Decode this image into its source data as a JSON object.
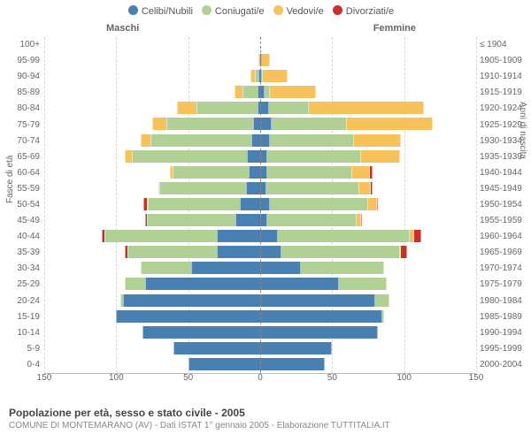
{
  "chart": {
    "type": "population-pyramid",
    "legend": [
      {
        "label": "Celibi/Nubili",
        "color": "#4a7fb2"
      },
      {
        "label": "Coniugati/e",
        "color": "#b0d095"
      },
      {
        "label": "Vedovi/e",
        "color": "#f7c15c"
      },
      {
        "label": "Divorziati/e",
        "color": "#c9302c"
      }
    ],
    "gender_labels": {
      "male": "Maschi",
      "female": "Femmine"
    },
    "yaxis_left_title": "Fasce di età",
    "yaxis_right_title": "Anni di nascita",
    "xlim": 150,
    "xticks": [
      150,
      100,
      50,
      0,
      50,
      100,
      150
    ],
    "background_color": "#ffffff",
    "grid_color": "#d8d8d8",
    "rows": [
      {
        "age": "100+",
        "birth": "≤ 1904",
        "m": {
          "celibi": 0,
          "coniugati": 0,
          "vedovi": 0,
          "divorziati": 0
        },
        "f": {
          "celibi": 0,
          "coniugati": 0,
          "vedovi": 0,
          "divorziati": 0
        }
      },
      {
        "age": "95-99",
        "birth": "1905-1909",
        "m": {
          "celibi": 0,
          "coniugati": 0,
          "vedovi": 1,
          "divorziati": 0
        },
        "f": {
          "celibi": 1,
          "coniugati": 0,
          "vedovi": 6,
          "divorziati": 0
        }
      },
      {
        "age": "90-94",
        "birth": "1910-1914",
        "m": {
          "celibi": 1,
          "coniugati": 3,
          "vedovi": 3,
          "divorziati": 0
        },
        "f": {
          "celibi": 1,
          "coniugati": 1,
          "vedovi": 17,
          "divorziati": 0
        }
      },
      {
        "age": "85-89",
        "birth": "1915-1919",
        "m": {
          "celibi": 2,
          "coniugati": 10,
          "vedovi": 6,
          "divorziati": 0
        },
        "f": {
          "celibi": 3,
          "coniugati": 4,
          "vedovi": 32,
          "divorziati": 0
        }
      },
      {
        "age": "80-84",
        "birth": "1920-1924",
        "m": {
          "celibi": 2,
          "coniugati": 42,
          "vedovi": 14,
          "divorziati": 0
        },
        "f": {
          "celibi": 6,
          "coniugati": 28,
          "vedovi": 80,
          "divorziati": 0
        }
      },
      {
        "age": "75-79",
        "birth": "1925-1929",
        "m": {
          "celibi": 5,
          "coniugati": 60,
          "vedovi": 10,
          "divorziati": 0
        },
        "f": {
          "celibi": 8,
          "coniugati": 52,
          "vedovi": 60,
          "divorziati": 0
        }
      },
      {
        "age": "70-74",
        "birth": "1930-1934",
        "m": {
          "celibi": 6,
          "coniugati": 70,
          "vedovi": 7,
          "divorziati": 0
        },
        "f": {
          "celibi": 7,
          "coniugati": 58,
          "vedovi": 33,
          "divorziati": 0
        }
      },
      {
        "age": "65-69",
        "birth": "1935-1939",
        "m": {
          "celibi": 9,
          "coniugati": 80,
          "vedovi": 5,
          "divorziati": 0
        },
        "f": {
          "celibi": 5,
          "coniugati": 65,
          "vedovi": 27,
          "divorziati": 0
        }
      },
      {
        "age": "60-64",
        "birth": "1940-1944",
        "m": {
          "celibi": 8,
          "coniugati": 53,
          "vedovi": 2,
          "divorziati": 0
        },
        "f": {
          "celibi": 5,
          "coniugati": 59,
          "vedovi": 12,
          "divorziati": 2
        }
      },
      {
        "age": "55-59",
        "birth": "1945-1949",
        "m": {
          "celibi": 10,
          "coniugati": 60,
          "vedovi": 1,
          "divorziati": 0
        },
        "f": {
          "celibi": 4,
          "coniugati": 65,
          "vedovi": 8,
          "divorziati": 1
        }
      },
      {
        "age": "50-54",
        "birth": "1950-1954",
        "m": {
          "celibi": 14,
          "coniugati": 64,
          "vedovi": 1,
          "divorziati": 2
        },
        "f": {
          "celibi": 7,
          "coniugati": 68,
          "vedovi": 6,
          "divorziati": 1
        }
      },
      {
        "age": "45-49",
        "birth": "1955-1959",
        "m": {
          "celibi": 17,
          "coniugati": 62,
          "vedovi": 0,
          "divorziati": 1
        },
        "f": {
          "celibi": 5,
          "coniugati": 62,
          "vedovi": 3,
          "divorziati": 1
        }
      },
      {
        "age": "40-44",
        "birth": "1960-1964",
        "m": {
          "celibi": 30,
          "coniugati": 78,
          "vedovi": 0,
          "divorziati": 2
        },
        "f": {
          "celibi": 12,
          "coniugati": 92,
          "vedovi": 3,
          "divorziati": 5
        }
      },
      {
        "age": "35-39",
        "birth": "1965-1969",
        "m": {
          "celibi": 30,
          "coniugati": 62,
          "vedovi": 0,
          "divorziati": 2
        },
        "f": {
          "celibi": 15,
          "coniugati": 82,
          "vedovi": 1,
          "divorziati": 4
        }
      },
      {
        "age": "30-34",
        "birth": "1970-1974",
        "m": {
          "celibi": 48,
          "coniugati": 35,
          "vedovi": 0,
          "divorziati": 0
        },
        "f": {
          "celibi": 28,
          "coniugati": 58,
          "vedovi": 0,
          "divorziati": 0
        }
      },
      {
        "age": "25-29",
        "birth": "1975-1979",
        "m": {
          "celibi": 80,
          "coniugati": 14,
          "vedovi": 0,
          "divorziati": 0
        },
        "f": {
          "celibi": 55,
          "coniugati": 33,
          "vedovi": 0,
          "divorziati": 0
        }
      },
      {
        "age": "20-24",
        "birth": "1980-1984",
        "m": {
          "celibi": 95,
          "coniugati": 2,
          "vedovi": 0,
          "divorziati": 0
        },
        "f": {
          "celibi": 80,
          "coniugati": 10,
          "vedovi": 0,
          "divorziati": 0
        }
      },
      {
        "age": "15-19",
        "birth": "1985-1989",
        "m": {
          "celibi": 100,
          "coniugati": 0,
          "vedovi": 0,
          "divorziati": 0
        },
        "f": {
          "celibi": 85,
          "coniugati": 1,
          "vedovi": 0,
          "divorziati": 0
        }
      },
      {
        "age": "10-14",
        "birth": "1990-1994",
        "m": {
          "celibi": 82,
          "coniugati": 0,
          "vedovi": 0,
          "divorziati": 0
        },
        "f": {
          "celibi": 82,
          "coniugati": 0,
          "vedovi": 0,
          "divorziati": 0
        }
      },
      {
        "age": "5-9",
        "birth": "1995-1999",
        "m": {
          "celibi": 60,
          "coniugati": 0,
          "vedovi": 0,
          "divorziati": 0
        },
        "f": {
          "celibi": 50,
          "coniugati": 0,
          "vedovi": 0,
          "divorziati": 0
        }
      },
      {
        "age": "0-4",
        "birth": "2000-2004",
        "m": {
          "celibi": 50,
          "coniugati": 0,
          "vedovi": 0,
          "divorziati": 0
        },
        "f": {
          "celibi": 45,
          "coniugati": 0,
          "vedovi": 0,
          "divorziati": 0
        }
      }
    ]
  },
  "footer": {
    "title": "Popolazione per età, sesso e stato civile - 2005",
    "subtitle": "COMUNE DI MONTEMARANO (AV) - Dati ISTAT 1° gennaio 2005 - Elaborazione TUTTITALIA.IT"
  }
}
